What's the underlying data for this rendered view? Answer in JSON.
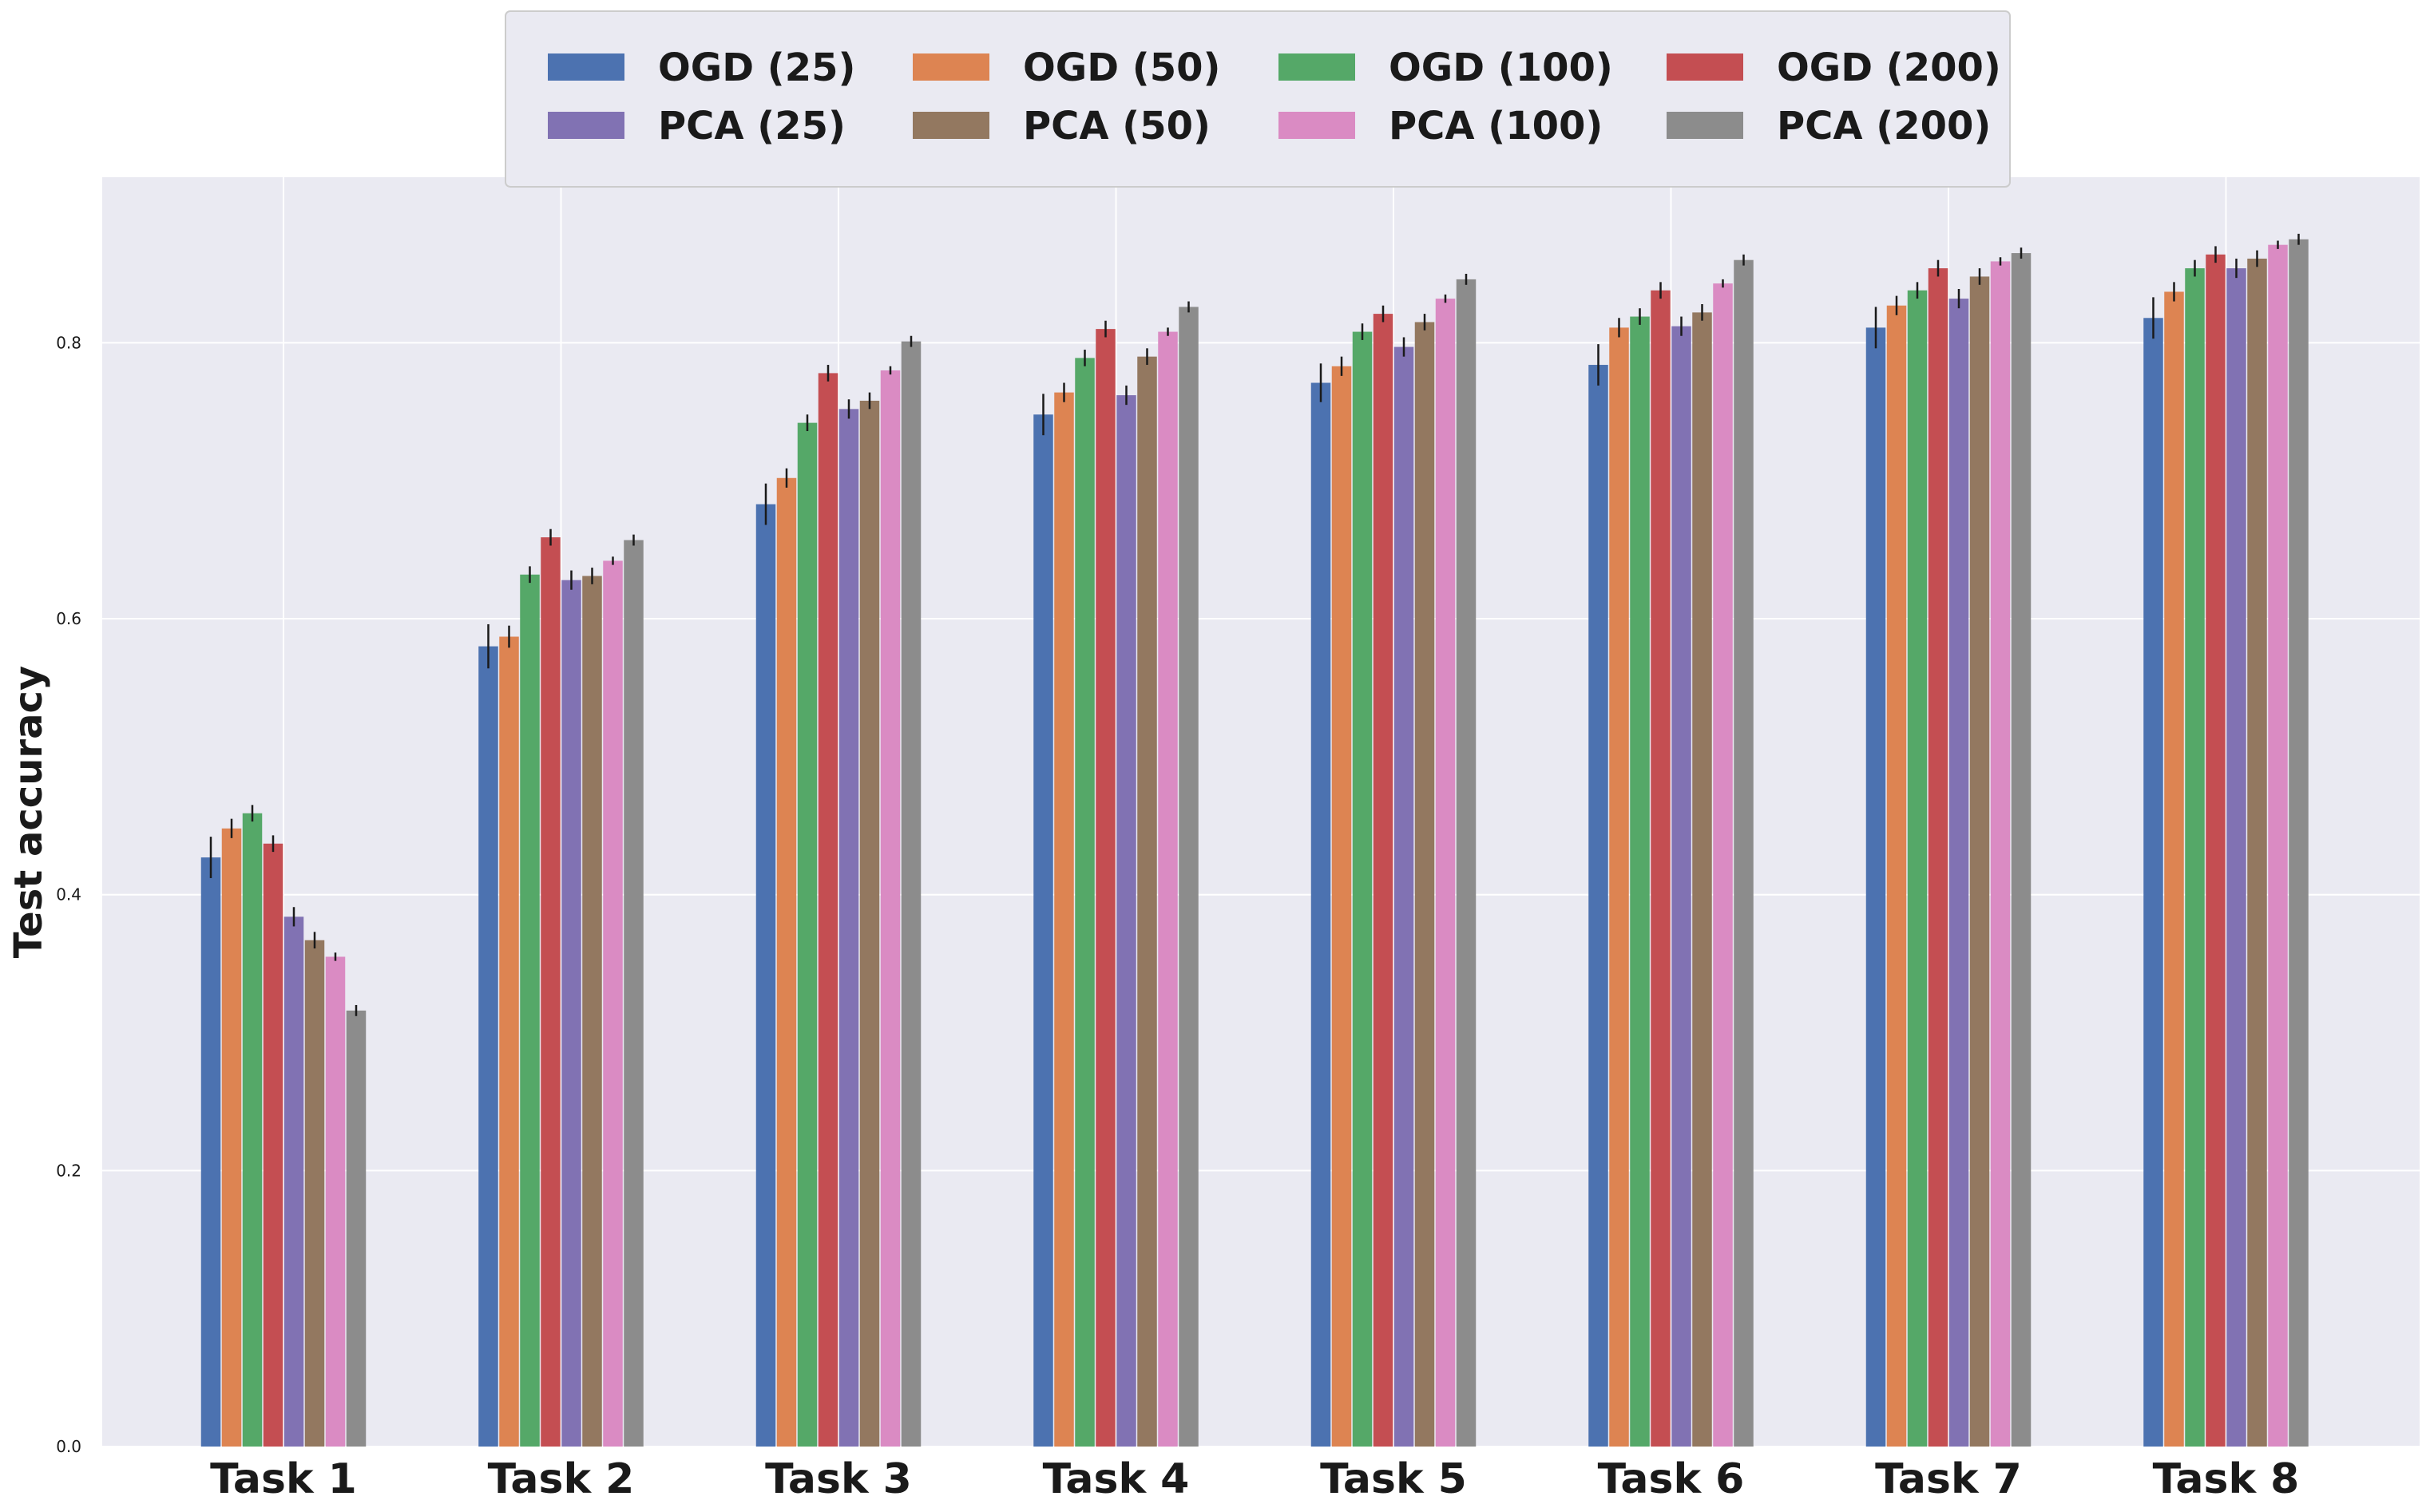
{
  "chart_data": {
    "type": "bar",
    "title": "",
    "xlabel": "",
    "ylabel": "Test accuracy",
    "ylim": [
      0,
      0.92
    ],
    "yticks": [
      "0.0",
      "0.2",
      "0.4",
      "0.6",
      "0.8"
    ],
    "grid": true,
    "legend_position": "top-center",
    "categories": [
      "Task 1",
      "Task 2",
      "Task 3",
      "Task 4",
      "Task 5",
      "Task 6",
      "Task 7",
      "Task 8"
    ],
    "series": [
      {
        "name": "OGD (25)",
        "color": "#4c72b0",
        "values": [
          0.427,
          0.58,
          0.683,
          0.748,
          0.771,
          0.784,
          0.811,
          0.818
        ],
        "errors": [
          0.015,
          0.016,
          0.015,
          0.015,
          0.014,
          0.015,
          0.015,
          0.015
        ]
      },
      {
        "name": "OGD (50)",
        "color": "#dd8452",
        "values": [
          0.448,
          0.587,
          0.702,
          0.764,
          0.783,
          0.811,
          0.827,
          0.837
        ],
        "errors": [
          0.007,
          0.008,
          0.007,
          0.007,
          0.007,
          0.007,
          0.007,
          0.007
        ]
      },
      {
        "name": "OGD (100)",
        "color": "#55a868",
        "values": [
          0.459,
          0.632,
          0.742,
          0.789,
          0.808,
          0.819,
          0.838,
          0.854
        ],
        "errors": [
          0.006,
          0.006,
          0.006,
          0.006,
          0.006,
          0.006,
          0.006,
          0.006
        ]
      },
      {
        "name": "OGD (200)",
        "color": "#c44e52",
        "values": [
          0.437,
          0.659,
          0.778,
          0.81,
          0.821,
          0.838,
          0.854,
          0.864
        ],
        "errors": [
          0.006,
          0.006,
          0.006,
          0.006,
          0.006,
          0.006,
          0.006,
          0.006
        ]
      },
      {
        "name": "PCA (25)",
        "color": "#8172b3",
        "values": [
          0.384,
          0.628,
          0.752,
          0.762,
          0.797,
          0.812,
          0.832,
          0.854
        ],
        "errors": [
          0.007,
          0.007,
          0.007,
          0.007,
          0.007,
          0.007,
          0.007,
          0.007
        ]
      },
      {
        "name": "PCA (50)",
        "color": "#937860",
        "values": [
          0.367,
          0.631,
          0.758,
          0.79,
          0.815,
          0.822,
          0.848,
          0.861
        ],
        "errors": [
          0.006,
          0.006,
          0.006,
          0.006,
          0.006,
          0.006,
          0.006,
          0.006
        ]
      },
      {
        "name": "PCA (100)",
        "color": "#da8bc3",
        "values": [
          0.355,
          0.642,
          0.78,
          0.808,
          0.832,
          0.843,
          0.859,
          0.871
        ],
        "errors": [
          0.003,
          0.003,
          0.003,
          0.003,
          0.003,
          0.003,
          0.003,
          0.003
        ]
      },
      {
        "name": "PCA (200)",
        "color": "#8c8c8c",
        "values": [
          0.316,
          0.657,
          0.801,
          0.826,
          0.846,
          0.86,
          0.865,
          0.875
        ],
        "errors": [
          0.004,
          0.004,
          0.004,
          0.004,
          0.004,
          0.004,
          0.004,
          0.004
        ]
      }
    ],
    "legend_order": [
      "OGD (25)",
      "OGD (50)",
      "OGD (100)",
      "OGD (200)",
      "PCA (25)",
      "PCA (50)",
      "PCA (100)",
      "PCA (200)"
    ]
  },
  "colors": {
    "plot_background": "#eaeaf2",
    "grid": "#ffffff",
    "error_bar": "#1a1a1a"
  }
}
